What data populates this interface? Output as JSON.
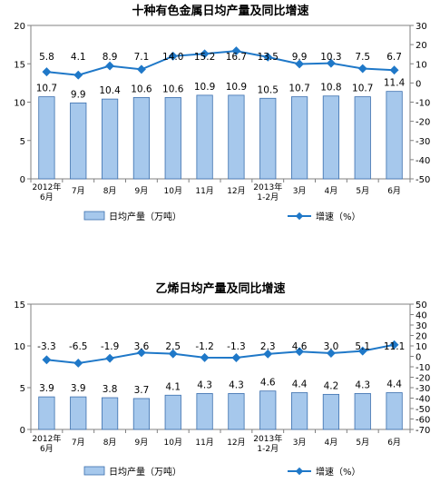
{
  "chart_data": [
    {
      "type": "bar",
      "title": "十种有色金属日均产量及同比增速",
      "categories": [
        "2012年\n6月",
        "7月",
        "8月",
        "9月",
        "10月",
        "11月",
        "12月",
        "2013年\n1-2月",
        "3月",
        "4月",
        "5月",
        "6月"
      ],
      "left_axis": {
        "ylim": [
          0,
          20
        ],
        "ticks": [
          "0",
          "5",
          "10",
          "15",
          "20"
        ]
      },
      "right_axis": {
        "ylim": [
          -50,
          30
        ],
        "ticks": [
          "-50",
          "-40",
          "-30",
          "-20",
          "-10",
          "0",
          "10",
          "20",
          "30"
        ]
      },
      "series": [
        {
          "name": "日均产量（万吨）",
          "type": "bar",
          "axis": "left",
          "color": "#a6c8ec",
          "values": [
            10.7,
            9.9,
            10.4,
            10.6,
            10.6,
            10.9,
            10.9,
            10.5,
            10.7,
            10.8,
            10.7,
            11.4
          ],
          "labels": [
            "10.7",
            "9.9",
            "10.4",
            "10.6",
            "10.6",
            "10.9",
            "10.9",
            "10.5",
            "10.7",
            "10.8",
            "10.7",
            "11.4"
          ]
        },
        {
          "name": "增速（%）",
          "type": "line",
          "axis": "right",
          "color": "#1f78c8",
          "values": [
            5.8,
            4.1,
            8.9,
            7.1,
            14.0,
            15.2,
            16.7,
            13.5,
            9.9,
            10.3,
            7.5,
            6.7
          ],
          "labels": [
            "5.8",
            "4.1",
            "8.9",
            "7.1",
            "14.0",
            "15.2",
            "16.7",
            "13.5",
            "9.9",
            "10.3",
            "7.5",
            "6.7"
          ]
        }
      ]
    },
    {
      "type": "bar",
      "title": "乙烯日均产量及同比增速",
      "categories": [
        "2012年\n6月",
        "7月",
        "8月",
        "9月",
        "10月",
        "11月",
        "12月",
        "2013年\n1-2月",
        "3月",
        "4月",
        "5月",
        "6月"
      ],
      "left_axis": {
        "ylim": [
          0,
          15
        ],
        "ticks": [
          "0",
          "5",
          "10",
          "15"
        ]
      },
      "right_axis": {
        "ylim": [
          -70,
          50
        ],
        "ticks": [
          "-70",
          "-60",
          "-50",
          "-40",
          "-30",
          "-20",
          "-10",
          "0",
          "10",
          "20",
          "30",
          "40",
          "50"
        ]
      },
      "series": [
        {
          "name": "日均产量（万吨）",
          "type": "bar",
          "axis": "left",
          "color": "#a6c8ec",
          "values": [
            3.9,
            3.9,
            3.8,
            3.7,
            4.1,
            4.3,
            4.3,
            4.6,
            4.4,
            4.2,
            4.3,
            4.4
          ],
          "labels": [
            "3.9",
            "3.9",
            "3.8",
            "3.7",
            "4.1",
            "4.3",
            "4.3",
            "4.6",
            "4.4",
            "4.2",
            "4.3",
            "4.4"
          ]
        },
        {
          "name": "增速（%）",
          "type": "line",
          "axis": "right",
          "color": "#1f78c8",
          "values": [
            -3.3,
            -6.5,
            -1.9,
            3.6,
            2.5,
            -1.2,
            -1.3,
            2.3,
            4.6,
            3.0,
            5.1,
            11.1
          ],
          "labels": [
            "-3.3",
            "-6.5",
            "-1.9",
            "3.6",
            "2.5",
            "-1.2",
            "-1.3",
            "2.3",
            "4.6",
            "3.0",
            "5.1",
            "11.1"
          ]
        }
      ]
    }
  ]
}
